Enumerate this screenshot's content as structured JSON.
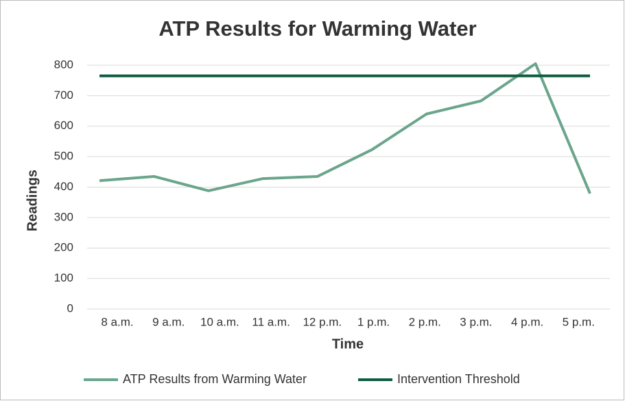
{
  "chart_data": {
    "type": "line",
    "title": "ATP Results for Warming Water",
    "xlabel": "Time",
    "ylabel": "Readings",
    "categories": [
      "8 a.m.",
      "9 a.m.",
      "10 a.m.",
      "11 a.m.",
      "12 p.m.",
      "1 p.m.",
      "2 p.m.",
      "3 p.m.",
      "4 p.m.",
      "5 p.m."
    ],
    "series": [
      {
        "name": "ATP Results from Warming Water",
        "color": "#6aa58c",
        "values": [
          421,
          435,
          388,
          428,
          435,
          523,
          640,
          683,
          805,
          379
        ]
      },
      {
        "name": "Intervention Threshold",
        "color": "#0f5c3f",
        "values": [
          765,
          765,
          765,
          765,
          765,
          765,
          765,
          765,
          765,
          765
        ]
      }
    ],
    "ylim": [
      0,
      800
    ],
    "yticks": [
      0,
      100,
      200,
      300,
      400,
      500,
      600,
      700,
      800
    ],
    "grid": true,
    "legend": "bottom"
  }
}
